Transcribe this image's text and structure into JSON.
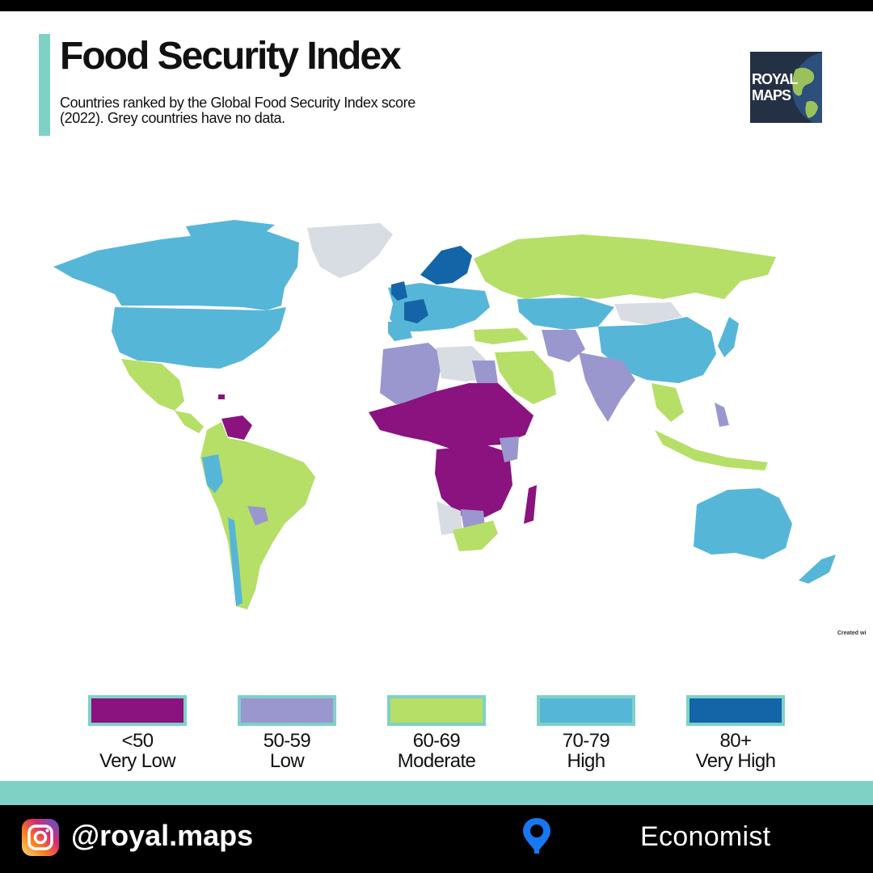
{
  "header": {
    "title": "Food Security Index",
    "subtitle": "Countries ranked by the Global Food Security Index score (2022). Grey countries have no data."
  },
  "logo": {
    "line1": "ROYAL",
    "line2": "MAPS"
  },
  "map": {
    "colors": {
      "very_low": "#8a1380",
      "low": "#9a97cf",
      "moderate": "#b5df67",
      "high": "#56b6d8",
      "very_high": "#1464a8",
      "no_data": "#d7dde2"
    },
    "credit": "Created wi"
  },
  "legend": [
    {
      "range": "<50",
      "label": "Very Low",
      "color": "#8a1380"
    },
    {
      "range": "50-59",
      "label": "Low",
      "color": "#9a97cf"
    },
    {
      "range": "60-69",
      "label": "Moderate",
      "color": "#b5df67"
    },
    {
      "range": "70-79",
      "label": "High",
      "color": "#56b6d8"
    },
    {
      "range": "80+",
      "label": "Very High",
      "color": "#1464a8"
    }
  ],
  "footer": {
    "handle": "@royal.maps",
    "source": "Economist",
    "icons": [
      "instagram-icon",
      "location-pin-icon"
    ]
  }
}
